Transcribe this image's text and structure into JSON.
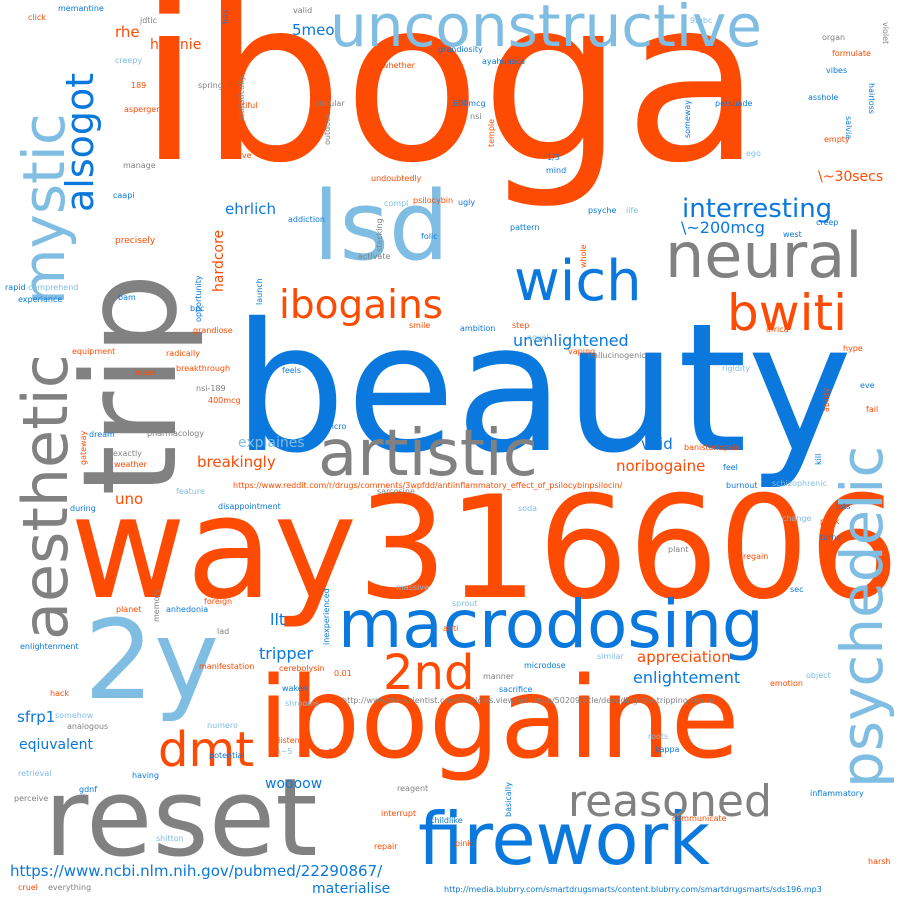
{
  "colors": {
    "orange": "#fe4b03",
    "blue": "#0a78dc",
    "lightblue": "#80bde3",
    "gray": "#818181"
  },
  "words": {
    "iboga": "iboga",
    "beauty": "beauty",
    "way316606": "way316606",
    "trip": "trip",
    "ibogaine": "ibogaine",
    "reset": "reset",
    "2y": "2y",
    "lsd": "lsd",
    "macrodosing": "macrodosing",
    "firework": "firework",
    "unconstructive": "unconstructive",
    "aesthetic": "aesthetic",
    "mystic": "mystic",
    "psychedelic": "psychedelic",
    "artistic": "artistic",
    "neural": "neural",
    "wich": "wich",
    "ibogains": "ibogains",
    "bwiti": "bwiti",
    "dmt": "dmt",
    "2nd": "2nd",
    "reasoned": "reasoned",
    "alsogot": "alsogot",
    "interresting": "interresting",
    "approx200mcg": "\\~200mcg",
    "approx30secs": "\\~30secs",
    "ehrlich": "ehrlich",
    "hardcore": "hardcore",
    "hyginie": "hyginie",
    "rhe": "rhe",
    "5meo": "5meo",
    "unenlightened": "unenlightened",
    "explaines": "explaines",
    "breakingly": "breakingly",
    "void": "void",
    "noribogaine": "noribogaine",
    "appreciation": "appreciation",
    "enlightement": "enlightement",
    "tripper": "tripper",
    "llt": "llt",
    "eqiuvalent": "eqiuvalent",
    "sfrp1": "sfrp1",
    "uno": "uno",
    "woooow": "woooow",
    "materialise": "materialise",
    "url_ncbi": "https://www.ncbi.nlm.nih.gov/pubmed/22290867/",
    "url_reddit": "https://www.reddit.com/r/drugs/comments/3wpfdd/antiinflammatory_effect_of_psilocybinpsilocin/",
    "url_scientist": "http://www.the-scientist.com/?articles.view/articleno/50209/title/decoding-the-tripping-brain/",
    "url_blubrry": "http://media.blubrry.com/smartdrugsmarts/content.blubrry.com/smartdrugsmarts/sds196.mp3",
    "click": "click",
    "memantine": "memantine",
    "jdtic": "jdtic",
    "creepy": "creepy",
    "spring": "spring",
    "n189": "189",
    "asperger": "asperger",
    "beautiful": "beautiful",
    "manage": "manage",
    "revolve": "revolve",
    "caapi": "caapi",
    "precisely": "precisely",
    "rapid": "rapid",
    "comprehend": "comprehend",
    "experiance": "experiance",
    "bam": "bam",
    "equipment": "equipment",
    "bpc": "bpc",
    "grandiose": "grandiose",
    "ideas": "ideas",
    "radically": "radically",
    "breakthrough": "breakthrough",
    "nsi189": "nsi-189",
    "mcg400": "400mcg",
    "pharmacology": "pharmacology",
    "dream": "dream",
    "exactly": "exactly",
    "weather": "weather",
    "gateway": "gateway",
    "feature": "feature",
    "during": "during",
    "disappointment": "disappointment",
    "planet": "planet",
    "anhedonia": "anhedonia",
    "foreign": "foreign",
    "memory": "memory",
    "lad": "lad",
    "enlightenment": "enlightenment",
    "manifestation": "manifestation",
    "cerebolysin": "cerebolysin",
    "hack": "hack",
    "somehow": "somehow",
    "analogous": "analogous",
    "numero": "numero",
    "potential": "potential",
    "approx5": "\\~5",
    "retrieval": "retrieval",
    "having": "having",
    "gdnf": "gdnf",
    "perceive": "perceive",
    "shitton": "shitton",
    "cruel": "cruel",
    "everything": "everything",
    "has": "has",
    "valid": "valid",
    "realistically": "realistically",
    "whether": "whether",
    "grandiosity": "grandiosity",
    "ayahuasca": "ayahuasca",
    "mcg600": "600mcg",
    "nsi": "nsi",
    "temple": "temple",
    "circular": "circular",
    "outdoor": "outdoor",
    "undoubtedly": "undoubtedly",
    "psilocybin": "psilocybin",
    "ugly": "ugly",
    "compl": "compl",
    "folic": "folic",
    "addiction": "addiction",
    "stacking": "stacking",
    "activate": "activate",
    "pattern": "pattern",
    "launch": "launch",
    "opportunity": "opportunity",
    "smile": "smile",
    "ambition": "ambition",
    "step": "step",
    "novel": "novel",
    "feels": "feels",
    "micro": "micro",
    "n9mbc": "9mbc",
    "serious": "serious",
    "decided": "decided",
    "someway": "someway",
    "persuade": "persuade",
    "ego": "ego",
    "fraction13": "1/3",
    "mind": "mind",
    "psyche": "psyche",
    "life": "life",
    "whole": "whole",
    "hallucinogenic": "hallucinogenic",
    "vaping": "vaping",
    "rigidity": "rigidity",
    "banisteriopsis": "banisteriopsis",
    "feel": "feel",
    "burnout": "burnout",
    "sarcosine": "sarcosine",
    "soda": "soda",
    "organ": "organ",
    "formulate": "formulate",
    "vibes": "vibes",
    "asshole": "asshole",
    "empty": "empty",
    "violet": "violet",
    "hairloss": "hairloss",
    "salvia": "salvia",
    "creep": "creep",
    "west": "west",
    "africa": "africa",
    "hype": "hype",
    "eve": "eve",
    "ability": "ability",
    "fail": "fail",
    "kill": "kill",
    "schizophrenic": "schizophrenic",
    "lots": "lots",
    "change": "change",
    "peak": "peak",
    "turns": "turns",
    "plant": "plant",
    "regain": "regain",
    "sec": "sec",
    "massive": "massive",
    "sprout": "sprout",
    "anti": "anti",
    "inexperienced": "inexperienced",
    "n001": "0.01",
    "manner": "manner",
    "microdose": "microdose",
    "similar": "similar",
    "sacrifice": "sacrifice",
    "emotion": "emotion",
    "object": "object",
    "waken": "waken",
    "shrooms": "shrooms",
    "listen": "listen",
    "color": "color",
    "roots": "roots",
    "kappa": "kappa",
    "reagent": "reagent",
    "interrupt": "interrupt",
    "childlike": "childlike",
    "basically": "basically",
    "communicate": "communicate",
    "inflammatory": "inflammatory",
    "repair": "repair",
    "pink": "pink",
    "harsh": "harsh"
  }
}
